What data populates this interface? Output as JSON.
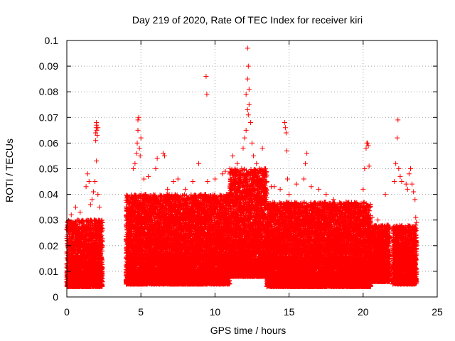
{
  "chart_data": {
    "type": "scatter",
    "title": "Day 219 of 2020, Rate Of TEC Index for receiver kiri",
    "xlabel": "GPS time / hours",
    "ylabel": "ROTI / TECUs",
    "xlim": [
      0,
      25
    ],
    "ylim": [
      0,
      0.1
    ],
    "x_ticks": [
      0,
      5,
      10,
      15,
      20,
      25
    ],
    "x_tick_labels": [
      "0",
      "5",
      "10",
      "15",
      "20",
      "25"
    ],
    "y_ticks": [
      0,
      0.01,
      0.02,
      0.03,
      0.04,
      0.05,
      0.06,
      0.07,
      0.08,
      0.09,
      0.1
    ],
    "y_tick_labels": [
      "0",
      "0.01",
      "0.02",
      "0.03",
      "0.04",
      "0.05",
      "0.06",
      "0.07",
      "0.08",
      "0.09",
      "0.1"
    ],
    "grid": true,
    "marker": "+",
    "colors": {
      "points": "#ff0000",
      "grid": "#a0a0a0",
      "axes": "#000000"
    },
    "density_profile": [
      {
        "x_range": [
          0.0,
          2.4
        ],
        "base_min": 0.004,
        "base_max": 0.03,
        "step": 0.006
      },
      {
        "x_range": [
          4.0,
          11.0
        ],
        "base_min": 0.005,
        "base_max": 0.04,
        "step": 0.005
      },
      {
        "x_range": [
          11.0,
          13.5
        ],
        "base_min": 0.008,
        "base_max": 0.05,
        "step": 0.005
      },
      {
        "x_range": [
          13.5,
          20.5
        ],
        "base_min": 0.004,
        "base_max": 0.037,
        "step": 0.005
      },
      {
        "x_range": [
          20.5,
          21.8
        ],
        "base_min": 0.006,
        "base_max": 0.028,
        "step": 0.006
      },
      {
        "x_range": [
          22.0,
          23.6
        ],
        "base_min": 0.005,
        "base_max": 0.028,
        "step": 0.006
      }
    ],
    "series": [
      {
        "name": "ROTI",
        "points": [
          [
            1.3,
            0.043
          ],
          [
            1.4,
            0.048
          ],
          [
            1.5,
            0.045
          ],
          [
            1.6,
            0.036
          ],
          [
            1.7,
            0.038
          ],
          [
            1.8,
            0.041
          ],
          [
            1.9,
            0.045
          ],
          [
            2.0,
            0.053
          ],
          [
            1.95,
            0.064
          ],
          [
            1.98,
            0.066
          ],
          [
            2.0,
            0.067
          ],
          [
            2.02,
            0.065
          ],
          [
            2.05,
            0.063
          ],
          [
            2.0,
            0.068
          ],
          [
            2.1,
            0.066
          ],
          [
            1.95,
            0.061
          ],
          [
            2.1,
            0.04
          ],
          [
            2.2,
            0.035
          ],
          [
            0.3,
            0.032
          ],
          [
            0.6,
            0.035
          ],
          [
            0.9,
            0.033
          ],
          [
            4.2,
            0.036
          ],
          [
            4.5,
            0.05
          ],
          [
            4.6,
            0.052
          ],
          [
            4.7,
            0.056
          ],
          [
            4.75,
            0.06
          ],
          [
            4.8,
            0.065
          ],
          [
            4.8,
            0.069
          ],
          [
            4.85,
            0.07
          ],
          [
            4.9,
            0.058
          ],
          [
            4.95,
            0.055
          ],
          [
            5.0,
            0.062
          ],
          [
            5.2,
            0.046
          ],
          [
            5.5,
            0.047
          ],
          [
            6.0,
            0.05
          ],
          [
            6.1,
            0.054
          ],
          [
            6.5,
            0.056
          ],
          [
            6.6,
            0.055
          ],
          [
            6.8,
            0.042
          ],
          [
            7.2,
            0.045
          ],
          [
            7.5,
            0.046
          ],
          [
            8.0,
            0.042
          ],
          [
            8.5,
            0.045
          ],
          [
            8.9,
            0.052
          ],
          [
            9.0,
            0.04
          ],
          [
            9.5,
            0.045
          ],
          [
            10.0,
            0.046
          ],
          [
            9.4,
            0.086
          ],
          [
            9.45,
            0.079
          ],
          [
            10.5,
            0.048
          ],
          [
            10.7,
            0.049
          ],
          [
            11.0,
            0.05
          ],
          [
            11.2,
            0.055
          ],
          [
            11.5,
            0.052
          ],
          [
            11.8,
            0.05
          ],
          [
            11.9,
            0.058
          ],
          [
            12.0,
            0.062
          ],
          [
            12.1,
            0.065
          ],
          [
            12.2,
            0.073
          ],
          [
            12.3,
            0.075
          ],
          [
            12.25,
            0.071
          ],
          [
            12.2,
            0.085
          ],
          [
            12.25,
            0.09
          ],
          [
            12.2,
            0.097
          ],
          [
            12.1,
            0.079
          ],
          [
            12.3,
            0.081
          ],
          [
            12.4,
            0.068
          ],
          [
            12.5,
            0.06
          ],
          [
            12.6,
            0.055
          ],
          [
            12.8,
            0.052
          ],
          [
            13.0,
            0.05
          ],
          [
            13.2,
            0.058
          ],
          [
            13.5,
            0.045
          ],
          [
            13.8,
            0.043
          ],
          [
            14.0,
            0.043
          ],
          [
            14.4,
            0.042
          ],
          [
            14.7,
            0.068
          ],
          [
            14.75,
            0.066
          ],
          [
            14.8,
            0.064
          ],
          [
            14.85,
            0.057
          ],
          [
            14.9,
            0.046
          ],
          [
            15.0,
            0.04
          ],
          [
            15.5,
            0.044
          ],
          [
            16.0,
            0.046
          ],
          [
            16.1,
            0.052
          ],
          [
            16.2,
            0.056
          ],
          [
            16.5,
            0.043
          ],
          [
            17.0,
            0.042
          ],
          [
            17.5,
            0.04
          ],
          [
            18.0,
            0.038
          ],
          [
            18.5,
            0.035
          ],
          [
            19.0,
            0.034
          ],
          [
            19.5,
            0.033
          ],
          [
            20.0,
            0.042
          ],
          [
            20.1,
            0.05
          ],
          [
            20.2,
            0.058
          ],
          [
            20.25,
            0.06
          ],
          [
            20.3,
            0.06
          ],
          [
            20.35,
            0.059
          ],
          [
            20.4,
            0.051
          ],
          [
            20.6,
            0.031
          ],
          [
            21.0,
            0.03
          ],
          [
            21.5,
            0.04
          ],
          [
            22.1,
            0.045
          ],
          [
            22.2,
            0.052
          ],
          [
            22.3,
            0.062
          ],
          [
            22.35,
            0.069
          ],
          [
            22.4,
            0.05
          ],
          [
            22.5,
            0.047
          ],
          [
            22.6,
            0.045
          ],
          [
            22.9,
            0.044
          ],
          [
            23.0,
            0.042
          ],
          [
            23.1,
            0.048
          ],
          [
            23.2,
            0.05
          ],
          [
            23.3,
            0.044
          ],
          [
            23.4,
            0.041
          ],
          [
            23.5,
            0.038
          ],
          [
            23.55,
            0.031
          ],
          [
            23.6,
            0.029
          ]
        ]
      }
    ]
  }
}
